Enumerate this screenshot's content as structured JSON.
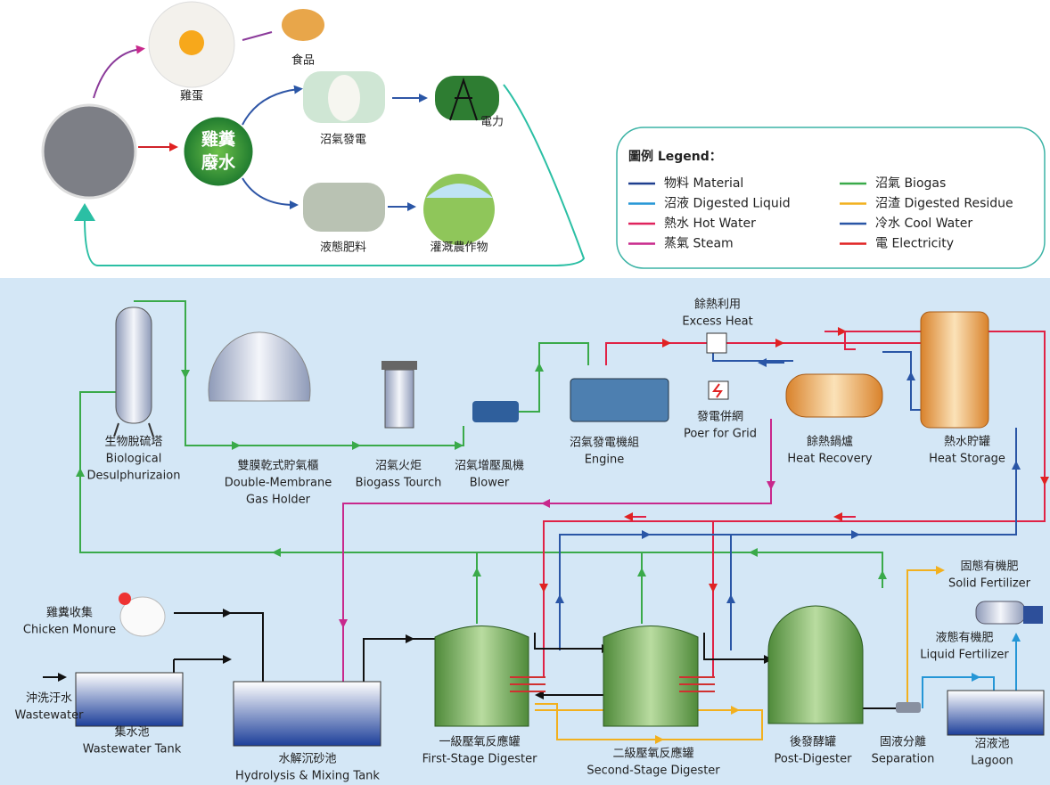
{
  "top": {
    "egg": "雞蛋",
    "food": "食品",
    "center": [
      "雞糞",
      "廢水"
    ],
    "biogas_power": "沼氣發電",
    "electricity": "電力",
    "liquid_fertilizer": "液態肥料",
    "crops": "灌溉農作物"
  },
  "legend": {
    "title": "圖例 Legend：",
    "items": [
      {
        "label": "物料 Material",
        "color": "#1f3f8f"
      },
      {
        "label": "沼液 Digested Liquid",
        "color": "#2596d6"
      },
      {
        "label": "熱水 Hot Water",
        "color": "#e0245e"
      },
      {
        "label": "蒸氣 Steam",
        "color": "#c8288c"
      },
      {
        "label": "沼氣 Biogas",
        "color": "#3aaa4a"
      },
      {
        "label": "沼渣 Digested Residue",
        "color": "#f2b01e"
      },
      {
        "label": "冷水 Cool Water",
        "color": "#2a56a6"
      },
      {
        "label": "電 Electricity",
        "color": "#e02222"
      }
    ]
  },
  "components": [
    {
      "lines": [
        "生物脫硫塔",
        "Biological",
        "Desulphurizaion"
      ]
    },
    {
      "lines": [
        "雙膜乾式貯氣櫃",
        "Double-Membrane",
        "Gas Holder"
      ]
    },
    {
      "lines": [
        "沼氣火炬",
        "Biogass Tourch"
      ]
    },
    {
      "lines": [
        "沼氣增壓風機",
        "Blower"
      ]
    },
    {
      "lines": [
        "沼氣發電機組",
        "Engine"
      ]
    },
    {
      "lines": [
        "發電併網",
        "Poer for Grid"
      ]
    },
    {
      "lines": [
        "餘熱利用",
        "Excess Heat"
      ]
    },
    {
      "lines": [
        "餘熱鍋爐",
        "Heat Recovery"
      ]
    },
    {
      "lines": [
        "熱水貯罐",
        "Heat Storage"
      ]
    },
    {
      "lines": [
        "固態有機肥",
        "Solid Fertilizer"
      ]
    },
    {
      "lines": [
        "雞糞收集",
        "Chicken Monure"
      ]
    },
    {
      "lines": [
        "液態有機肥",
        "Liquid Fertilizer"
      ]
    },
    {
      "lines": [
        "沖洗汙水",
        "Wastewater"
      ]
    },
    {
      "lines": [
        "集水池",
        "Wastewater Tank"
      ]
    },
    {
      "lines": [
        "水解沉砂池",
        "Hydrolysis & Mixing Tank"
      ]
    },
    {
      "lines": [
        "一級壓氧反應罐",
        "First-Stage Digester"
      ]
    },
    {
      "lines": [
        "二級壓氧反應罐",
        "Second-Stage Digester"
      ]
    },
    {
      "lines": [
        "後發酵罐",
        "Post-Digester"
      ]
    },
    {
      "lines": [
        "固液分離",
        "Separation"
      ]
    },
    {
      "lines": [
        "沼液池",
        "Lagoon"
      ]
    }
  ]
}
